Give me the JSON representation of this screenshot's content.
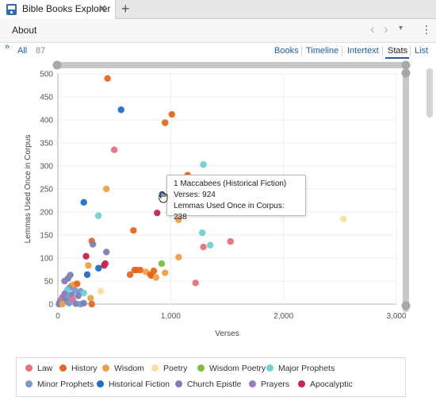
{
  "tab": {
    "title": "Bible Books Explorer",
    "close_glyph": "✕",
    "add_glyph": "+"
  },
  "aboutbar": {
    "label": "About",
    "back_glyph": "‹",
    "forward_glyph": "›",
    "menu_glyph": "▾",
    "more_glyph": "⋮"
  },
  "viewbar": {
    "expand_glyph": "»",
    "filter_label": "All",
    "count": "87",
    "views": [
      "Books",
      "Timeline",
      "Intertext",
      "Stats",
      "List"
    ],
    "active_view": "Stats"
  },
  "tooltip": {
    "title": "1 Maccabees (Historical Fiction)",
    "line1": "Verses: 924",
    "line2": "Lemmas Used Once in Corpus: 238"
  },
  "colors": {
    "Law": "#e8707b",
    "History": "#e8661e",
    "Wisdom": "#f0a044",
    "Poetry": "#f7e09a",
    "Wisdom Poetry": "#7bbf3a",
    "Major Prophets": "#6fd1d1",
    "Minor Prophets": "#7a98c8",
    "Historical Fiction": "#1e6fc7",
    "Church Epistle": "#7a7fb8",
    "Prayers": "#9a7bc2",
    "Apocalyptic": "#c7254e"
  },
  "chart_data": {
    "type": "scatter",
    "xlabel": "Verses",
    "ylabel": "Lemmas Used Once in Corpus",
    "xlim": [
      0,
      3000
    ],
    "ylim": [
      0,
      500
    ],
    "xticks": [
      "0",
      "1,000",
      "2,000",
      "3,000"
    ],
    "yticks": [
      "0",
      "50",
      "100",
      "150",
      "200",
      "250",
      "300",
      "350",
      "400",
      "450",
      "500"
    ],
    "legend": [
      "Law",
      "History",
      "Wisdom",
      "Poetry",
      "Wisdom Poetry",
      "Major Prophets",
      "Minor Prophets",
      "Historical Fiction",
      "Church Epistle",
      "Prayers",
      "Apocalyptic"
    ],
    "points": [
      {
        "x": 440,
        "y": 490,
        "c": "History"
      },
      {
        "x": 1010,
        "y": 412,
        "c": "History"
      },
      {
        "x": 950,
        "y": 394,
        "c": "History"
      },
      {
        "x": 560,
        "y": 422,
        "c": "Historical Fiction"
      },
      {
        "x": 500,
        "y": 335,
        "c": "Law"
      },
      {
        "x": 1290,
        "y": 303,
        "c": "Major Prophets"
      },
      {
        "x": 1150,
        "y": 280,
        "c": "History"
      },
      {
        "x": 924,
        "y": 238,
        "c": "Historical Fiction"
      },
      {
        "x": 430,
        "y": 250,
        "c": "Wisdom"
      },
      {
        "x": 230,
        "y": 221,
        "c": "Historical Fiction"
      },
      {
        "x": 360,
        "y": 192,
        "c": "Major Prophets"
      },
      {
        "x": 880,
        "y": 198,
        "c": "Apocalyptic"
      },
      {
        "x": 1070,
        "y": 183,
        "c": "Wisdom"
      },
      {
        "x": 2530,
        "y": 185,
        "c": "Poetry"
      },
      {
        "x": 1280,
        "y": 155,
        "c": "Major Prophets"
      },
      {
        "x": 670,
        "y": 160,
        "c": "History"
      },
      {
        "x": 300,
        "y": 137,
        "c": "History"
      },
      {
        "x": 1530,
        "y": 136,
        "c": "Law"
      },
      {
        "x": 1350,
        "y": 128,
        "c": "Major Prophets"
      },
      {
        "x": 1290,
        "y": 124,
        "c": "Law"
      },
      {
        "x": 310,
        "y": 130,
        "c": "Church Epistle"
      },
      {
        "x": 430,
        "y": 113,
        "c": "Church Epistle"
      },
      {
        "x": 250,
        "y": 104,
        "c": "Apocalyptic"
      },
      {
        "x": 1070,
        "y": 102,
        "c": "Wisdom"
      },
      {
        "x": 920,
        "y": 88,
        "c": "Wisdom Poetry"
      },
      {
        "x": 420,
        "y": 88,
        "c": "Apocalyptic"
      },
      {
        "x": 410,
        "y": 84,
        "c": "Apocalyptic"
      },
      {
        "x": 270,
        "y": 84,
        "c": "Wisdom"
      },
      {
        "x": 360,
        "y": 78,
        "c": "Historical Fiction"
      },
      {
        "x": 680,
        "y": 74,
        "c": "History"
      },
      {
        "x": 700,
        "y": 74,
        "c": "History"
      },
      {
        "x": 730,
        "y": 74,
        "c": "History"
      },
      {
        "x": 850,
        "y": 72,
        "c": "History"
      },
      {
        "x": 780,
        "y": 70,
        "c": "Wisdom"
      },
      {
        "x": 950,
        "y": 68,
        "c": "Wisdom"
      },
      {
        "x": 640,
        "y": 64,
        "c": "History"
      },
      {
        "x": 820,
        "y": 64,
        "c": "History"
      },
      {
        "x": 830,
        "y": 62,
        "c": "History"
      },
      {
        "x": 870,
        "y": 58,
        "c": "Wisdom"
      },
      {
        "x": 1220,
        "y": 46,
        "c": "Law"
      },
      {
        "x": 260,
        "y": 64,
        "c": "Historical Fiction"
      },
      {
        "x": 110,
        "y": 63,
        "c": "Church Epistle"
      },
      {
        "x": 90,
        "y": 56,
        "c": "Church Epistle"
      },
      {
        "x": 60,
        "y": 50,
        "c": "Church Epistle"
      },
      {
        "x": 140,
        "y": 42,
        "c": "Wisdom"
      },
      {
        "x": 170,
        "y": 44,
        "c": "History"
      },
      {
        "x": 120,
        "y": 40,
        "c": "Wisdom"
      },
      {
        "x": 100,
        "y": 35,
        "c": "Minor Prophets"
      },
      {
        "x": 80,
        "y": 30,
        "c": "Major Prophets"
      },
      {
        "x": 150,
        "y": 30,
        "c": "Minor Prophets"
      },
      {
        "x": 200,
        "y": 28,
        "c": "Minor Prophets"
      },
      {
        "x": 380,
        "y": 28,
        "c": "Poetry"
      },
      {
        "x": 230,
        "y": 24,
        "c": "Major Prophets"
      },
      {
        "x": 60,
        "y": 22,
        "c": "Church Epistle"
      },
      {
        "x": 120,
        "y": 20,
        "c": "Church Epistle"
      },
      {
        "x": 180,
        "y": 18,
        "c": "Church Epistle"
      },
      {
        "x": 40,
        "y": 15,
        "c": "Prayers"
      },
      {
        "x": 90,
        "y": 15,
        "c": "Minor Prophets"
      },
      {
        "x": 290,
        "y": 13,
        "c": "Wisdom"
      },
      {
        "x": 50,
        "y": 10,
        "c": "Church Epistle"
      },
      {
        "x": 130,
        "y": 10,
        "c": "Law"
      },
      {
        "x": 20,
        "y": 8,
        "c": "Law"
      },
      {
        "x": 70,
        "y": 6,
        "c": "Church Epistle"
      },
      {
        "x": 30,
        "y": 4,
        "c": "Prayers"
      },
      {
        "x": 15,
        "y": 3,
        "c": "Minor Prophets"
      },
      {
        "x": 100,
        "y": 2,
        "c": "Minor Prophets"
      },
      {
        "x": 160,
        "y": 1,
        "c": "Church Epistle"
      },
      {
        "x": 200,
        "y": 0,
        "c": "Minor Prophets"
      },
      {
        "x": 10,
        "y": 0,
        "c": "Church Epistle"
      },
      {
        "x": 40,
        "y": 0,
        "c": "Wisdom"
      },
      {
        "x": 230,
        "y": 2,
        "c": "Church Epistle"
      },
      {
        "x": 300,
        "y": 0,
        "c": "History"
      }
    ]
  }
}
